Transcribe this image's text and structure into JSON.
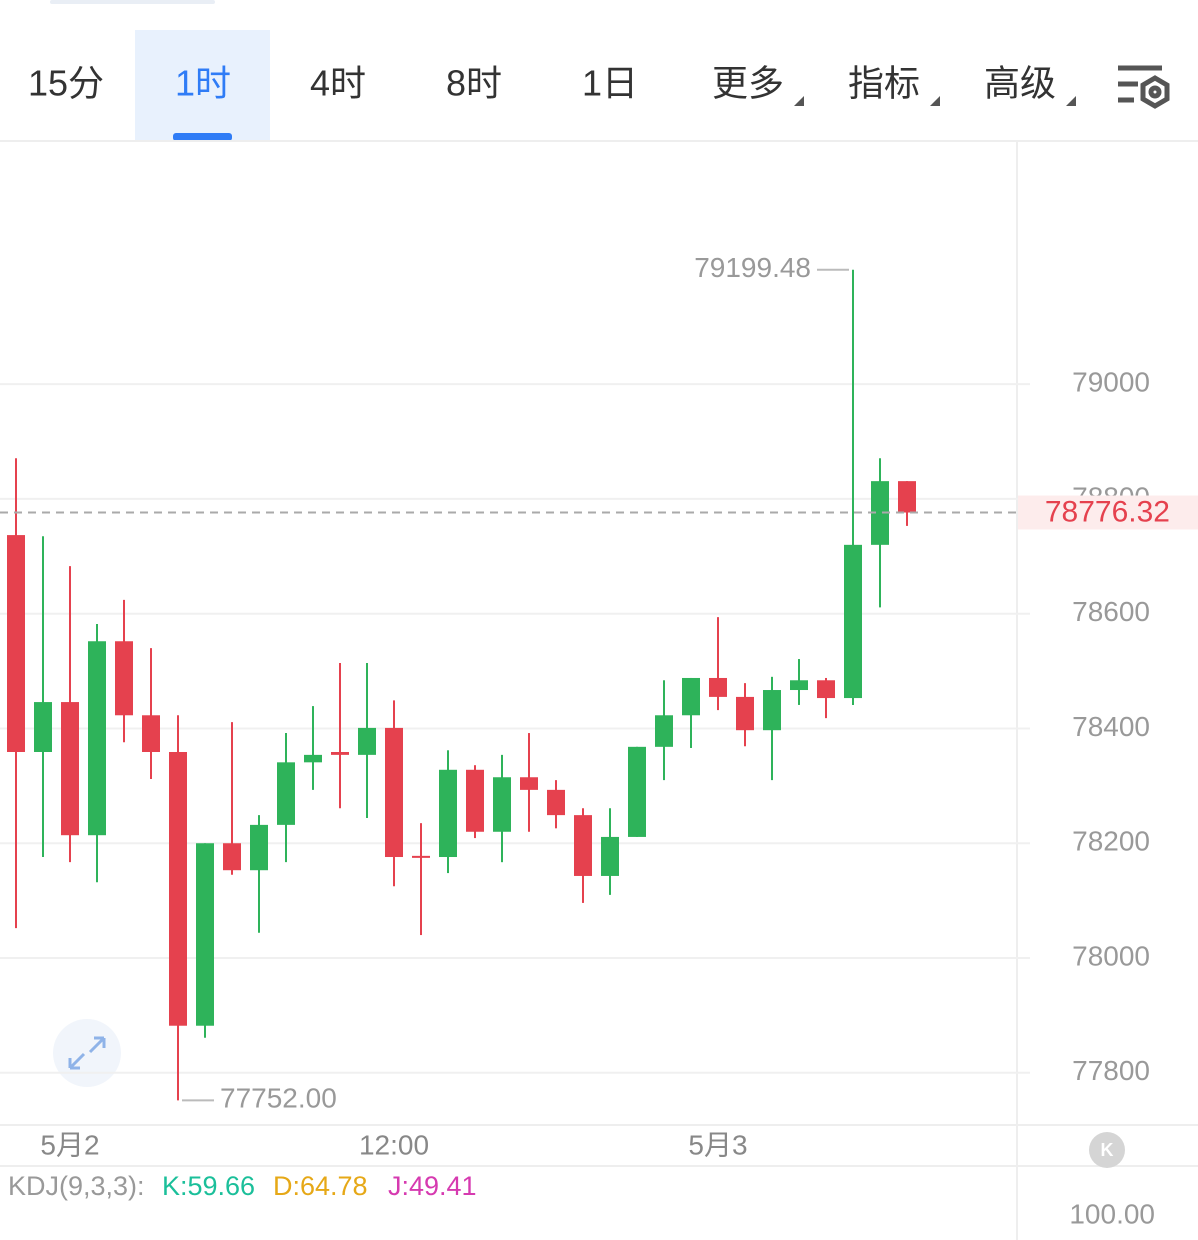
{
  "tabs": [
    "15分",
    "1时",
    "4时",
    "8时",
    "1日",
    "更多",
    "指标",
    "高级"
  ],
  "selected_tab": 1,
  "chart_data": {
    "type": "candlestick",
    "categories": [
      null,
      null,
      "5月2",
      null,
      null,
      null,
      null,
      null,
      null,
      null,
      null,
      null,
      null,
      null,
      "12:00",
      null,
      null,
      null,
      null,
      null,
      null,
      null,
      null,
      null,
      null,
      null,
      "5月3",
      null,
      null,
      null,
      null,
      null,
      null,
      null
    ],
    "open": [
      78737,
      78359,
      78446,
      78214,
      78552,
      78423,
      78359,
      77882,
      78200,
      78153,
      78232,
      78341,
      78359,
      78354,
      78401,
      78178,
      78176,
      78328,
      78220,
      78315,
      78293,
      78249,
      78143,
      78211,
      78368,
      78423,
      78488,
      78455,
      78397,
      78467,
      78484,
      78453,
      78720,
      78831
    ],
    "high": [
      78871,
      78735,
      78683,
      78582,
      78624,
      78540,
      78423,
      78200,
      78411,
      78249,
      78392,
      78439,
      78514,
      78514,
      78449,
      78235,
      78362,
      78336,
      78354,
      78392,
      78310,
      78261,
      78261,
      78368,
      78484,
      78488,
      78594,
      78479,
      78490,
      78521,
      78488,
      79199.48,
      78871,
      78831
    ],
    "low": [
      78052,
      78176,
      78167,
      78132,
      78376,
      78312,
      77752,
      77861,
      78145,
      78044,
      78167,
      78293,
      78261,
      78244,
      78125,
      78040,
      78148,
      78209,
      78167,
      78220,
      78226,
      78096,
      78110,
      78211,
      78310,
      78366,
      78432,
      78369,
      78310,
      78441,
      78418,
      78441,
      78611,
      78753
    ],
    "close": [
      78359,
      78446,
      78214,
      78552,
      78423,
      78359,
      77882,
      78200,
      78153,
      78232,
      78341,
      78354,
      78354,
      78401,
      78176,
      78176,
      78328,
      78220,
      78315,
      78293,
      78249,
      78143,
      78211,
      78368,
      78423,
      78488,
      78455,
      78397,
      78467,
      78484,
      78453,
      78720,
      78831,
      78776.32
    ],
    "up_color": "#2eb35a",
    "down_color": "#e5414e",
    "ylim": [
      77709,
      79422
    ],
    "yticks": [
      77800,
      78000,
      78200,
      78400,
      78600,
      78800,
      79000
    ],
    "grid": true,
    "high_label": "79199.48",
    "low_label": "77752.00"
  },
  "indicator": {
    "name": "KDJ(9,3,3):",
    "k": "K:59.66",
    "d": "D:64.78",
    "j": "J:49.41",
    "axis_label": "100.00"
  }
}
